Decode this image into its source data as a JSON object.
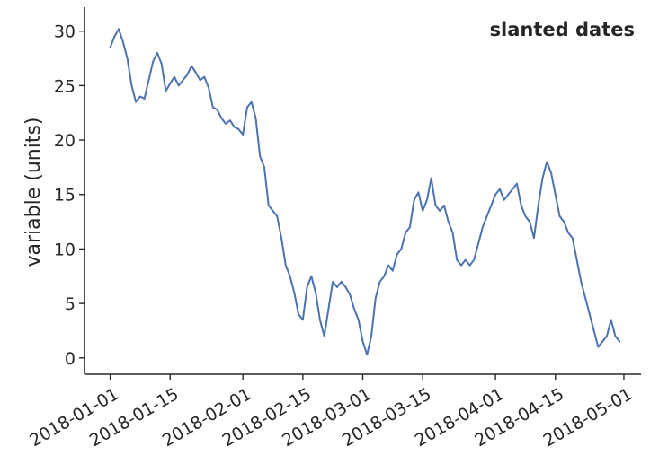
{
  "chart_data": {
    "type": "line",
    "title": "slanted dates",
    "xlabel": "",
    "ylabel": "variable (units)",
    "xlim": [
      "2017-12-26",
      "2018-05-05"
    ],
    "ylim": [
      -1.5,
      32.2
    ],
    "x_ticks": [
      "2018-01-01",
      "2018-01-15",
      "2018-02-01",
      "2018-02-15",
      "2018-03-01",
      "2018-03-15",
      "2018-04-01",
      "2018-04-15",
      "2018-05-01"
    ],
    "y_ticks": [
      0,
      5,
      10,
      15,
      20,
      25,
      30
    ],
    "grid": false,
    "legend": "none",
    "colors": {
      "line": "#4c72b0",
      "axis": "#262626"
    },
    "series": [
      {
        "x": [
          "2018-01-01",
          "2018-01-02",
          "2018-01-03",
          "2018-01-04",
          "2018-01-05",
          "2018-01-06",
          "2018-01-07",
          "2018-01-08",
          "2018-01-09",
          "2018-01-10",
          "2018-01-11",
          "2018-01-12",
          "2018-01-13",
          "2018-01-14",
          "2018-01-15",
          "2018-01-16",
          "2018-01-17",
          "2018-01-18",
          "2018-01-19",
          "2018-01-20",
          "2018-01-21",
          "2018-01-22",
          "2018-01-23",
          "2018-01-24",
          "2018-01-25",
          "2018-01-26",
          "2018-01-27",
          "2018-01-28",
          "2018-01-29",
          "2018-01-30",
          "2018-01-31",
          "2018-02-01",
          "2018-02-02",
          "2018-02-03",
          "2018-02-04",
          "2018-02-05",
          "2018-02-06",
          "2018-02-07",
          "2018-02-08",
          "2018-02-09",
          "2018-02-10",
          "2018-02-11",
          "2018-02-12",
          "2018-02-13",
          "2018-02-14",
          "2018-02-15",
          "2018-02-16",
          "2018-02-17",
          "2018-02-18",
          "2018-02-19",
          "2018-02-20",
          "2018-02-21",
          "2018-02-22",
          "2018-02-23",
          "2018-02-24",
          "2018-02-25",
          "2018-02-26",
          "2018-02-27",
          "2018-02-28",
          "2018-03-01",
          "2018-03-02",
          "2018-03-03",
          "2018-03-04",
          "2018-03-05",
          "2018-03-06",
          "2018-03-07",
          "2018-03-08",
          "2018-03-09",
          "2018-03-10",
          "2018-03-11",
          "2018-03-12",
          "2018-03-13",
          "2018-03-14",
          "2018-03-15",
          "2018-03-16",
          "2018-03-17",
          "2018-03-18",
          "2018-03-19",
          "2018-03-20",
          "2018-03-21",
          "2018-03-22",
          "2018-03-23",
          "2018-03-24",
          "2018-03-25",
          "2018-03-26",
          "2018-03-27",
          "2018-03-28",
          "2018-03-29",
          "2018-03-30",
          "2018-03-31",
          "2018-04-01",
          "2018-04-02",
          "2018-04-03",
          "2018-04-04",
          "2018-04-05",
          "2018-04-06",
          "2018-04-07",
          "2018-04-08",
          "2018-04-09",
          "2018-04-10",
          "2018-04-11",
          "2018-04-12",
          "2018-04-13",
          "2018-04-14",
          "2018-04-15",
          "2018-04-16",
          "2018-04-17",
          "2018-04-18",
          "2018-04-19",
          "2018-04-20",
          "2018-04-21",
          "2018-04-22",
          "2018-04-23",
          "2018-04-24",
          "2018-04-25",
          "2018-04-26",
          "2018-04-27",
          "2018-04-28",
          "2018-04-29",
          "2018-04-30"
        ],
        "y": [
          28.5,
          29.5,
          30.2,
          29.0,
          27.5,
          25.0,
          23.5,
          24.0,
          23.8,
          25.5,
          27.2,
          28.0,
          27.0,
          24.5,
          25.2,
          25.8,
          25.0,
          25.5,
          26.0,
          26.8,
          26.2,
          25.5,
          25.8,
          24.8,
          23.0,
          22.8,
          22.0,
          21.5,
          21.8,
          21.2,
          21.0,
          20.5,
          23.0,
          23.5,
          22.0,
          18.5,
          17.5,
          14.0,
          13.5,
          13.0,
          11.0,
          8.5,
          7.5,
          6.0,
          4.0,
          3.5,
          6.5,
          7.5,
          6.0,
          3.5,
          2.0,
          4.5,
          7.0,
          6.5,
          7.0,
          6.5,
          5.8,
          4.5,
          3.5,
          1.5,
          0.3,
          2.0,
          5.5,
          7.0,
          7.5,
          8.5,
          8.0,
          9.5,
          10.0,
          11.5,
          12.0,
          14.5,
          15.2,
          13.5,
          14.5,
          16.5,
          14.0,
          13.5,
          14.0,
          12.5,
          11.5,
          9.0,
          8.5,
          9.0,
          8.5,
          9.0,
          10.5,
          12.0,
          13.0,
          14.0,
          15.0,
          15.5,
          14.5,
          15.0,
          15.5,
          16.0,
          14.0,
          13.0,
          12.5,
          11.0,
          14.0,
          16.5,
          18.0,
          17.0,
          15.0,
          13.0,
          12.5,
          11.5,
          11.0,
          9.0,
          7.0,
          5.5,
          4.0,
          2.5,
          1.0,
          1.5,
          2.0,
          3.5,
          2.0,
          1.5
        ]
      }
    ]
  }
}
